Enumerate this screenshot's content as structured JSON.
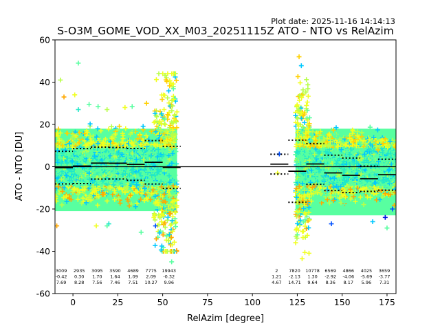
{
  "chart_data": {
    "type": "scatter",
    "plot_date": "Plot date: 2025-11-16 14:14:13",
    "title": "S-O3M_GOME_VOD_XX_M03_20251115Z ATO - NTO vs RelAzim",
    "xlabel": "RelAzim [degree]",
    "ylabel": "ATO - NTO [DU]",
    "xlim": [
      -10,
      180
    ],
    "ylim": [
      -60,
      60
    ],
    "xticks": [
      0,
      25,
      50,
      75,
      100,
      125,
      150,
      175
    ],
    "yticks": [
      -60,
      -40,
      -20,
      0,
      20,
      40,
      60
    ],
    "zero_line": 0,
    "colors": {
      "cyan": "#00c8ff",
      "blue": "#0050ff",
      "deep_blue": "#0010e0",
      "teal": "#20e8c8",
      "green": "#58ffa0",
      "lime": "#b8ff48",
      "yellow": "#f0ff20",
      "gold": "#ffd000",
      "orange": "#ffa800"
    },
    "clusters": [
      {
        "name": "left",
        "x_range": [
          -10,
          58
        ],
        "lower_core": -12,
        "upper_core": 12,
        "lower_extent": -25,
        "upper_extent": 22
      },
      {
        "name": "right",
        "x_range": [
          124,
          180
        ],
        "lower_core": -18,
        "upper_core": 14,
        "lower_extent": -27,
        "upper_extent": 22
      }
    ],
    "bins": [
      {
        "x": 0,
        "x_range": [
          -10,
          0
        ],
        "count": "3009",
        "mean": "-0.42",
        "std": "7.69"
      },
      {
        "x": 10,
        "x_range": [
          0,
          10
        ],
        "count": "2935",
        "mean": "0.30",
        "std": "8.28"
      },
      {
        "x": 20,
        "x_range": [
          10,
          20
        ],
        "count": "3095",
        "mean": "1.70",
        "std": "7.56"
      },
      {
        "x": 30,
        "x_range": [
          20,
          30
        ],
        "count": "3590",
        "mean": "1.64",
        "std": "7.46"
      },
      {
        "x": 40,
        "x_range": [
          30,
          40
        ],
        "count": "4689",
        "mean": "1.09",
        "std": "7.51"
      },
      {
        "x": 50,
        "x_range": [
          40,
          50
        ],
        "count": "7775",
        "mean": "2.09",
        "std": "10.27"
      },
      {
        "x": 60,
        "x_range": [
          50,
          60
        ],
        "count": "19943",
        "mean": "-0.32",
        "std": "9.96"
      },
      {
        "x": 120,
        "x_range": [
          110,
          120
        ],
        "count": "2",
        "mean": "1.21",
        "std": "4.67"
      },
      {
        "x": 130,
        "x_range": [
          120,
          130
        ],
        "count": "7820",
        "mean": "-2.13",
        "std": "14.71"
      },
      {
        "x": 140,
        "x_range": [
          130,
          140
        ],
        "count": "10778",
        "mean": "1.30",
        "std": "9.64"
      },
      {
        "x": 150,
        "x_range": [
          140,
          150
        ],
        "count": "6569",
        "mean": "-2.92",
        "std": "8.36"
      },
      {
        "x": 160,
        "x_range": [
          150,
          160
        ],
        "count": "4866",
        "mean": "-4.06",
        "std": "8.17"
      },
      {
        "x": 170,
        "x_range": [
          160,
          170
        ],
        "count": "4025",
        "mean": "-5.69",
        "std": "5.96"
      },
      {
        "x": 180,
        "x_range": [
          170,
          180
        ],
        "count": "3659",
        "mean": "-3.77",
        "std": "7.31"
      }
    ],
    "outliers": [
      {
        "x": -7,
        "y": 41,
        "c": "lime"
      },
      {
        "x": -5,
        "y": 33,
        "c": "orange"
      },
      {
        "x": 3,
        "y": 49,
        "c": "green"
      },
      {
        "x": 1,
        "y": 34,
        "c": "yellow"
      },
      {
        "x": 3,
        "y": 27,
        "c": "teal"
      },
      {
        "x": 9,
        "y": 29.5,
        "c": "green"
      },
      {
        "x": 19,
        "y": 27,
        "c": "lime"
      },
      {
        "x": 14,
        "y": 28.5,
        "c": "green"
      },
      {
        "x": 29,
        "y": 28,
        "c": "yellow"
      },
      {
        "x": 33,
        "y": 28.5,
        "c": "green"
      },
      {
        "x": 41,
        "y": 30,
        "c": "gold"
      },
      {
        "x": -9,
        "y": -28,
        "c": "orange"
      },
      {
        "x": 13,
        "y": -28,
        "c": "yellow"
      },
      {
        "x": 19,
        "y": -28,
        "c": "green"
      },
      {
        "x": 20,
        "y": -27,
        "c": "teal"
      },
      {
        "x": 38,
        "y": -31,
        "c": "green"
      },
      {
        "x": 46,
        "y": -28,
        "c": "blue"
      },
      {
        "x": 55,
        "y": -45,
        "c": "green"
      },
      {
        "x": 115,
        "y": 6,
        "c": "blue"
      },
      {
        "x": 114,
        "y": -3,
        "c": "yellow"
      },
      {
        "x": 126,
        "y": 52,
        "c": "gold"
      },
      {
        "x": 144,
        "y": -27,
        "c": "blue"
      },
      {
        "x": 167,
        "y": -26,
        "c": "cyan"
      },
      {
        "x": 175,
        "y": -29,
        "c": "green"
      },
      {
        "x": 174,
        "y": -24,
        "c": "deep_blue"
      },
      {
        "x": 178,
        "y": -20,
        "c": "blue"
      },
      {
        "x": 170,
        "y": 8,
        "c": "gold"
      }
    ]
  }
}
